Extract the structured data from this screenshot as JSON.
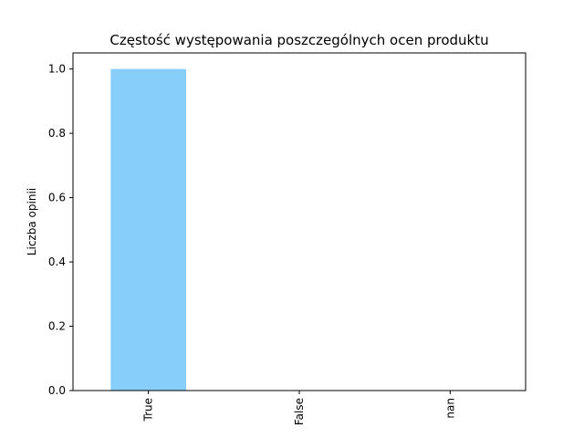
{
  "chart_data": {
    "type": "bar",
    "title": "Częstość występowania poszczególnych ocen produktu",
    "xlabel": "",
    "ylabel": "Liczba opinii",
    "categories": [
      "True",
      "False",
      "nan"
    ],
    "values": [
      1.0,
      0.0,
      0.0
    ],
    "ylim": [
      0,
      1.05
    ],
    "yticks": [
      0.0,
      0.2,
      0.4,
      0.6,
      0.8,
      1.0
    ],
    "ytick_labels": [
      "0.0",
      "0.2",
      "0.4",
      "0.6",
      "0.8",
      "1.0"
    ],
    "bar_color": "#87CEFA",
    "grid": false,
    "legend": "none"
  }
}
